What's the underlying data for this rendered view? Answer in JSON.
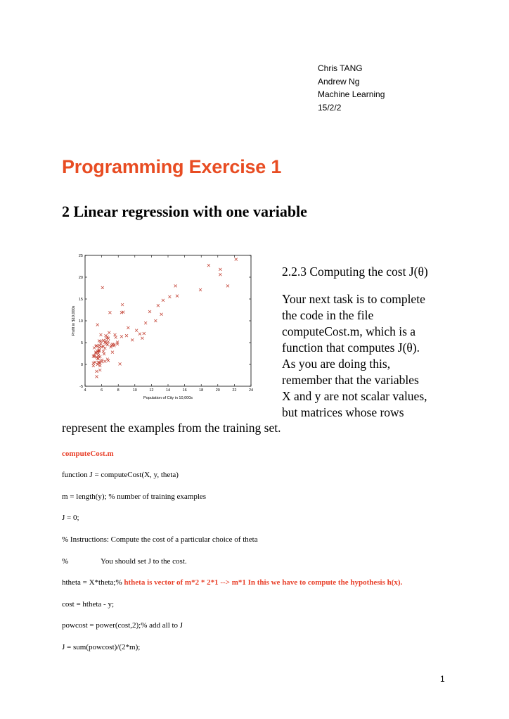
{
  "header": {
    "author": "Chris TANG",
    "instructor": "Andrew Ng",
    "course": "Machine Learning",
    "date": "15/2/2"
  },
  "title": "Programming Exercise 1",
  "section_heading": "2 Linear regression with one variable",
  "subsection_heading": "2.2.3 Computing the cost J(θ)",
  "paragraph": {
    "lines": [
      "Your next task is to complete",
      "the code in the file",
      "computeCost.m, which is a",
      "function that computes J(θ).",
      "As you are doing this,",
      "remember that the variables",
      "X and y are not scalar values,",
      "but matrices whose rows"
    ],
    "continuation": "represent the examples from the training set."
  },
  "code": {
    "filename": "computeCost.m",
    "lines": [
      "function J = computeCost(X, y, theta)",
      "m = length(y); % number of training examples",
      "J = 0;",
      "% Instructions: Compute the cost of a particular choice of theta",
      "%",
      "You should set J to the cost.",
      "htheta = X*theta;% ",
      "htheta is vector of m*2 * 2*1 --> m*1 In this we have to compute the hypothesis h(x).",
      "cost = htheta - y;",
      "powcost = power(cost,2);% add all to J",
      "J = sum(powcost)/(2*m);"
    ]
  },
  "page_number": "1",
  "chart_data": {
    "type": "scatter",
    "title": "",
    "xlabel": "Population of City in 10,000s",
    "ylabel": "Profit in $10,000s",
    "xlim": [
      4,
      24
    ],
    "ylim": [
      -5,
      25
    ],
    "xticks": [
      "4",
      "6",
      "8",
      "10",
      "12",
      "14",
      "16",
      "18",
      "20",
      "22",
      "24"
    ],
    "yticks": [
      "-5",
      "0",
      "5",
      "10",
      "15",
      "20",
      "25"
    ],
    "marker_color": "#c0392b",
    "points": [
      [
        6.1,
        17.6
      ],
      [
        5.5,
        9.1
      ],
      [
        8.5,
        13.7
      ],
      [
        7.0,
        11.9
      ],
      [
        5.9,
        6.8
      ],
      [
        8.4,
        11.9
      ],
      [
        7.5,
        4.3
      ],
      [
        8.6,
        12.0
      ],
      [
        6.5,
        6.6
      ],
      [
        5.1,
        3.8
      ],
      [
        5.7,
        3.3
      ],
      [
        14.2,
        15.5
      ],
      [
        5.7,
        3.1
      ],
      [
        6.4,
        0.7
      ],
      [
        5.3,
        2.8
      ],
      [
        5.6,
        3.1
      ],
      [
        6.4,
        3.7
      ],
      [
        5.4,
        4.3
      ],
      [
        7.1,
        4.0
      ],
      [
        5.7,
        0.4
      ],
      [
        8.4,
        6.4
      ],
      [
        5.5,
        -0.0
      ],
      [
        5.2,
        0.5
      ],
      [
        5.8,
        1.8
      ],
      [
        6.8,
        5.2
      ],
      [
        6.8,
        0.9
      ],
      [
        6.0,
        4.0
      ],
      [
        9.2,
        8.4
      ],
      [
        6.7,
        1.2
      ],
      [
        6.9,
        7.3
      ],
      [
        5.4,
        -2.8
      ],
      [
        5.1,
        2.1
      ],
      [
        5.9,
        5.3
      ],
      [
        8.2,
        0.1
      ],
      [
        5.7,
        4.4
      ],
      [
        6.2,
        5.5
      ],
      [
        6.2,
        3.0
      ],
      [
        6.6,
        6.0
      ],
      [
        12.8,
        13.5
      ],
      [
        10.6,
        7.0
      ],
      [
        5.0,
        0.3
      ],
      [
        5.7,
        3.9
      ],
      [
        6.5,
        5.3
      ],
      [
        7.7,
        6.2
      ],
      [
        7.3,
        4.6
      ],
      [
        6.7,
        6.3
      ],
      [
        5.3,
        4.2
      ],
      [
        14.9,
        18.0
      ],
      [
        11.3,
        9.5
      ],
      [
        10.2,
        7.8
      ],
      [
        6.2,
        4.2
      ],
      [
        5.4,
        -1.6
      ],
      [
        6.4,
        5.0
      ],
      [
        5.0,
        1.9
      ],
      [
        6.8,
        6.0
      ],
      [
        11.1,
        7.1
      ],
      [
        9.7,
        5.6
      ],
      [
        7.9,
        4.7
      ],
      [
        13.4,
        14.7
      ],
      [
        17.9,
        17.1
      ],
      [
        22.2,
        24.1
      ],
      [
        20.3,
        21.8
      ],
      [
        18.9,
        22.7
      ],
      [
        20.3,
        20.6
      ],
      [
        21.2,
        18.0
      ],
      [
        10.9,
        6.0
      ],
      [
        12.5,
        10.0
      ],
      [
        11.8,
        12.1
      ],
      [
        9.0,
        6.6
      ],
      [
        7.9,
        5.1
      ],
      [
        5.8,
        -1.3
      ],
      [
        6.0,
        1.0
      ],
      [
        7.6,
        6.8
      ],
      [
        6.7,
        4.5
      ],
      [
        5.1,
        1.8
      ],
      [
        5.0,
        -0.3
      ],
      [
        5.6,
        0.5
      ],
      [
        5.6,
        2.0
      ],
      [
        5.5,
        3.0
      ],
      [
        6.0,
        0.6
      ],
      [
        5.7,
        5.4
      ],
      [
        7.2,
        4.4
      ],
      [
        5.5,
        1.4
      ],
      [
        7.5,
        4.6
      ],
      [
        5.6,
        1.3
      ],
      [
        13.2,
        11.5
      ],
      [
        7.3,
        2.8
      ],
      [
        5.9,
        4.7
      ],
      [
        6.3,
        2.4
      ],
      [
        15.1,
        15.7
      ],
      [
        5.6,
        2.6
      ],
      [
        6.6,
        4.8
      ],
      [
        5.8,
        0.3
      ],
      [
        5.4,
        1.7
      ],
      [
        5.3,
        2.6
      ],
      [
        5.8,
        -0.3
      ]
    ]
  }
}
